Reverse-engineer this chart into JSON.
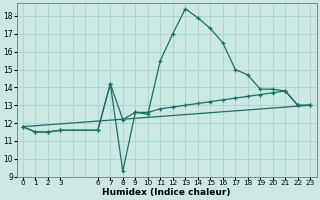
{
  "xlabel": "Humidex (Indice chaleur)",
  "background_color": "#cce8e4",
  "grid_color": "#aad4cc",
  "line_color": "#1a6e62",
  "xlim": [
    -0.5,
    23.5
  ],
  "ylim": [
    9,
    18.7
  ],
  "yticks": [
    9,
    10,
    11,
    12,
    13,
    14,
    15,
    16,
    17,
    18
  ],
  "xticks": [
    0,
    1,
    2,
    3,
    6,
    7,
    8,
    9,
    10,
    11,
    12,
    13,
    14,
    15,
    16,
    17,
    18,
    19,
    20,
    21,
    22,
    23
  ],
  "xtick_labels": [
    "0",
    "1",
    "2",
    "3",
    "6",
    "7",
    "8",
    "9",
    "10",
    "11",
    "12",
    "13",
    "14",
    "15",
    "16",
    "17",
    "18",
    "19",
    "20",
    "21",
    "22",
    "23"
  ],
  "series1_x": [
    0,
    1,
    2,
    3,
    6,
    7,
    8,
    9,
    10,
    11,
    12,
    13,
    14,
    15,
    16,
    17,
    18,
    19,
    20,
    21,
    22,
    23
  ],
  "series1_y": [
    11.8,
    11.5,
    11.5,
    11.6,
    11.6,
    14.2,
    9.3,
    12.6,
    12.5,
    15.5,
    17.0,
    18.4,
    17.9,
    17.3,
    16.5,
    15.0,
    14.7,
    13.9,
    13.9,
    13.8,
    13.0,
    13.0
  ],
  "series2_x": [
    0,
    1,
    2,
    3,
    6,
    7,
    8,
    9,
    10,
    11,
    12,
    13,
    14,
    15,
    16,
    17,
    18,
    19,
    20,
    21,
    22,
    23
  ],
  "series2_y": [
    11.8,
    11.5,
    11.5,
    11.6,
    11.6,
    14.2,
    12.2,
    12.6,
    12.6,
    12.8,
    12.9,
    13.0,
    13.1,
    13.2,
    13.3,
    13.4,
    13.5,
    13.6,
    13.7,
    13.8,
    13.0,
    13.0
  ],
  "series3_x": [
    0,
    23
  ],
  "series3_y": [
    11.8,
    13.0
  ],
  "marker": "+"
}
